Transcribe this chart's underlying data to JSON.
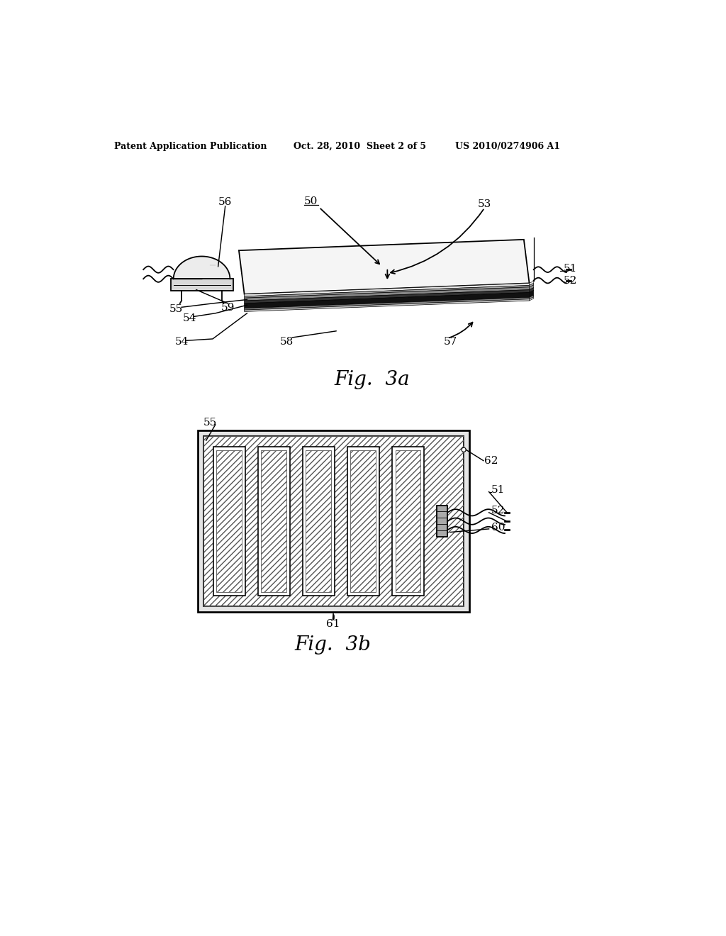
{
  "bg_color": "#ffffff",
  "line_color": "#000000",
  "header_left": "Patent Application Publication",
  "header_mid": "Oct. 28, 2010  Sheet 2 of 5",
  "header_right": "US 2010/0274906 A1",
  "fig3a_label": "Fig.  3a",
  "fig3b_label": "Fig.  3b"
}
